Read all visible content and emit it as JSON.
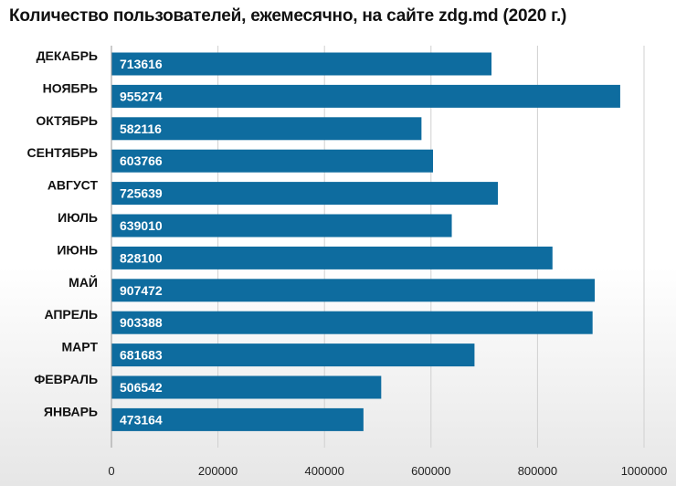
{
  "chart_data": {
    "type": "bar",
    "orientation": "horizontal",
    "title": "Количество пользователей, ежемесячно, на сайте zdg.md (2020 г.)",
    "xlabel": "",
    "ylabel": "",
    "categories": [
      "ДЕКАБРЬ",
      "НОЯБРЬ",
      "ОКТЯБРЬ",
      "СЕНТЯБРЬ",
      "АВГУСТ",
      "ИЮЛЬ",
      "ИЮНЬ",
      "МАЙ",
      "АПРЕЛЬ",
      "МАРТ",
      "ФЕВРАЛЬ",
      "ЯНВАРЬ"
    ],
    "values": [
      713616,
      955274,
      582116,
      603766,
      725639,
      639010,
      828100,
      907472,
      903388,
      681683,
      506542,
      473164
    ],
    "xlim": [
      0,
      1000000
    ],
    "xticks": [
      0,
      200000,
      400000,
      600000,
      800000,
      1000000
    ],
    "xtick_labels": [
      "0",
      "200000",
      "400000",
      "600000",
      "800000",
      "1000000"
    ],
    "grid": "vertical",
    "legend": "none",
    "colors": {
      "bar": "#0e6c9f"
    }
  }
}
